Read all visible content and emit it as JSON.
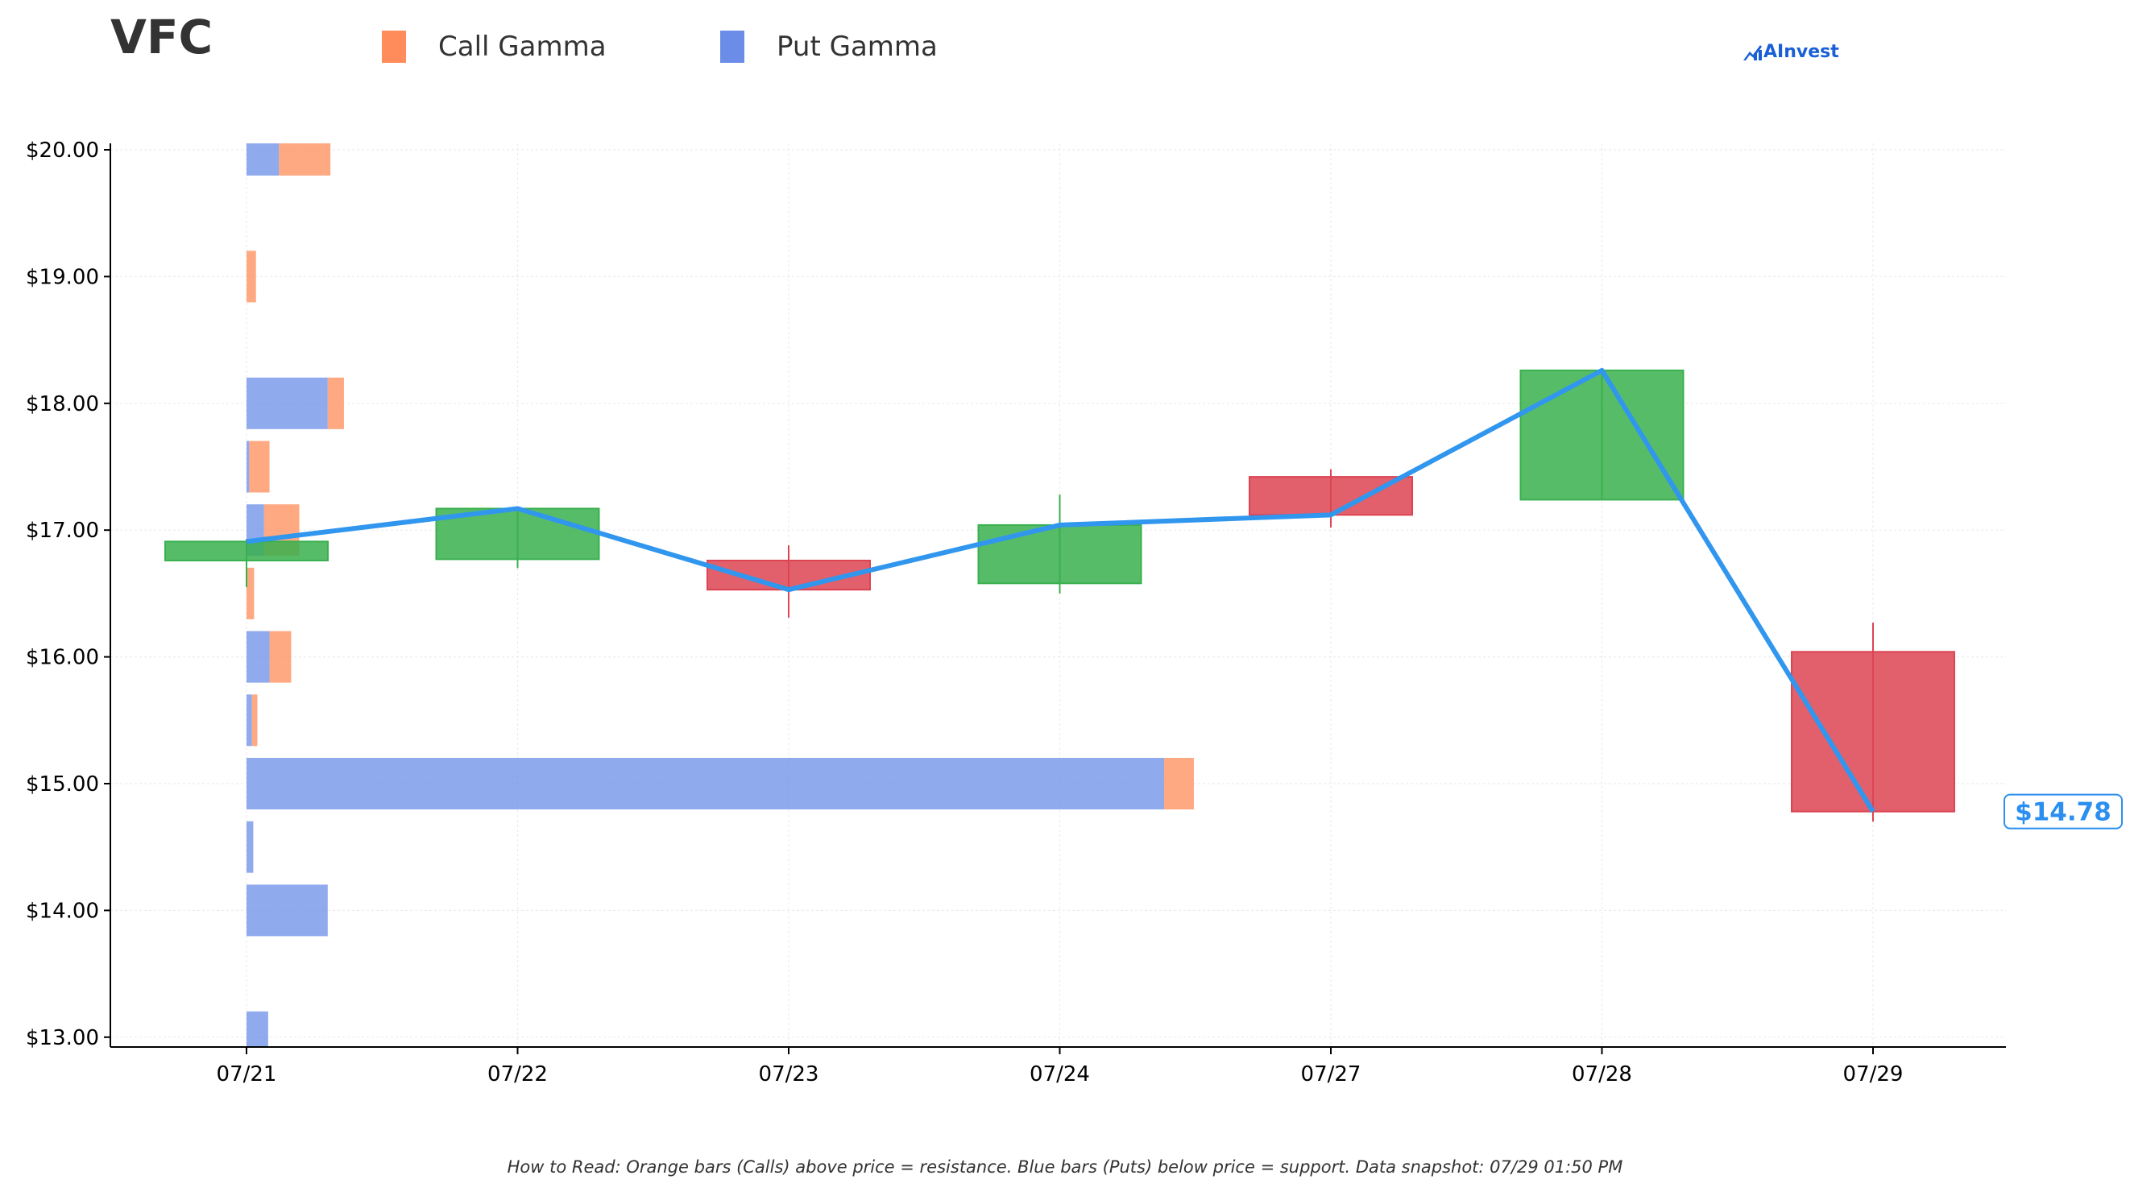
{
  "title": "VFC",
  "brand": "AInvest",
  "footnote": "How to Read: Orange bars (Calls) above price = resistance. Blue bars (Puts) below price = support. Data snapshot: 07/29 01:50 PM",
  "colors": {
    "call": "#ff8c5a",
    "put": "#6b8de8",
    "up": "#3ab04e",
    "down": "#dc4452",
    "line": "#3196ee",
    "price_label": "#2b8ff0"
  },
  "chart_data": {
    "type": "candlestick",
    "title": "VFC",
    "legend": [
      "Call Gamma",
      "Put Gamma"
    ],
    "x_categories": [
      "07/21",
      "07/22",
      "07/23",
      "07/24",
      "07/27",
      "07/28",
      "07/29"
    ],
    "y_range": [
      12.93,
      20.05
    ],
    "y_ticks": [
      13,
      14,
      15,
      16,
      17,
      18,
      19,
      20
    ],
    "y_tick_labels": [
      "$13.00",
      "$14.00",
      "$15.00",
      "$16.00",
      "$17.00",
      "$18.00",
      "$19.00",
      "$20.00"
    ],
    "candles": [
      {
        "date": "07/21",
        "open": 16.76,
        "close": 16.91,
        "high": 16.93,
        "low": 16.55
      },
      {
        "date": "07/22",
        "open": 16.77,
        "close": 17.17,
        "high": 17.18,
        "low": 16.7
      },
      {
        "date": "07/23",
        "open": 16.76,
        "close": 16.53,
        "high": 16.88,
        "low": 16.31
      },
      {
        "date": "07/24",
        "open": 16.58,
        "close": 17.04,
        "high": 17.28,
        "low": 16.5
      },
      {
        "date": "07/27",
        "open": 17.42,
        "close": 17.12,
        "high": 17.48,
        "low": 17.02
      },
      {
        "date": "07/28",
        "open": 17.24,
        "close": 18.26,
        "high": 18.26,
        "low": 17.24
      },
      {
        "date": "07/29",
        "open": 16.04,
        "close": 14.78,
        "high": 16.27,
        "low": 14.7
      }
    ],
    "close_line": [
      16.91,
      17.17,
      16.53,
      17.04,
      17.12,
      18.26,
      14.78
    ],
    "current_price": 14.78,
    "current_price_label": "$14.78",
    "gamma_levels": [
      {
        "strike": 20.0,
        "put": 0.12,
        "call": 0.19
      },
      {
        "strike": 19.0,
        "put": 0.0,
        "call": 0.035
      },
      {
        "strike": 18.0,
        "put": 0.3,
        "call": 0.06
      },
      {
        "strike": 17.5,
        "put": 0.01,
        "call": 0.075
      },
      {
        "strike": 17.0,
        "put": 0.065,
        "call": 0.13
      },
      {
        "strike": 16.5,
        "put": 0.0,
        "call": 0.028
      },
      {
        "strike": 16.0,
        "put": 0.085,
        "call": 0.08
      },
      {
        "strike": 15.5,
        "put": 0.02,
        "call": 0.02
      },
      {
        "strike": 15.0,
        "put": 3.39,
        "call": 0.11
      },
      {
        "strike": 14.5,
        "put": 0.025,
        "call": 0.0
      },
      {
        "strike": 14.0,
        "put": 0.3,
        "call": 0.0
      },
      {
        "strike": 13.0,
        "put": 0.08,
        "call": 0.0
      }
    ],
    "grid": true
  }
}
